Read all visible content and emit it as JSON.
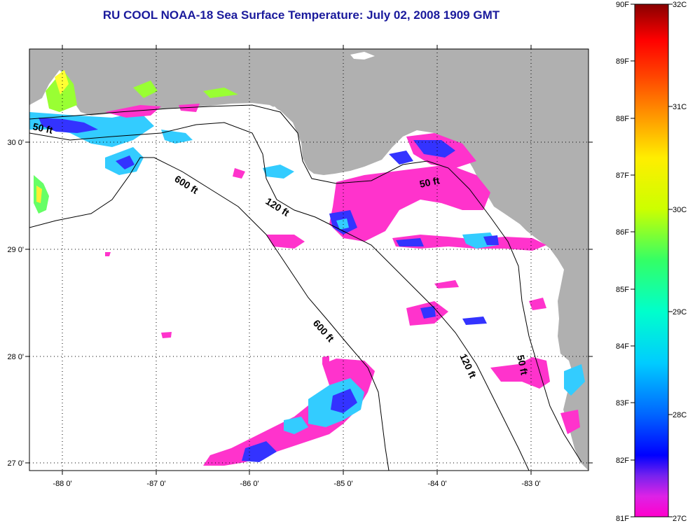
{
  "title": "RU COOL  NOAA-18  Sea Surface Temperature:  July 02, 2008 1909 GMT",
  "map": {
    "lon_ticks": [
      "-88 0'",
      "-87 0'",
      "-86 0'",
      "-85 0'",
      "-84 0'",
      "-83 0'"
    ],
    "lat_ticks": [
      "30 0'",
      "29 0'",
      "28 0'",
      "27 0'"
    ],
    "colors": {
      "land": "#b0b0b0",
      "water_no_data": "#ffffff",
      "sst_warm": "#ff33cc",
      "sst_cool": "#3333ff"
    },
    "contours": [
      {
        "label": "50 ft"
      },
      {
        "label": "600 ft"
      },
      {
        "label": "120 ft"
      },
      {
        "label": "50 ft"
      },
      {
        "label": "600 ft"
      },
      {
        "label": "120 ft"
      },
      {
        "label": "50 ft"
      }
    ]
  },
  "colorbar": {
    "fahrenheit_labels": [
      "90F",
      "89F",
      "88F",
      "87F",
      "86F",
      "85F",
      "84F",
      "83F",
      "82F",
      "81F"
    ],
    "celsius_labels": [
      "32C",
      "31C",
      "30C",
      "29C",
      "28C",
      "27C"
    ]
  }
}
